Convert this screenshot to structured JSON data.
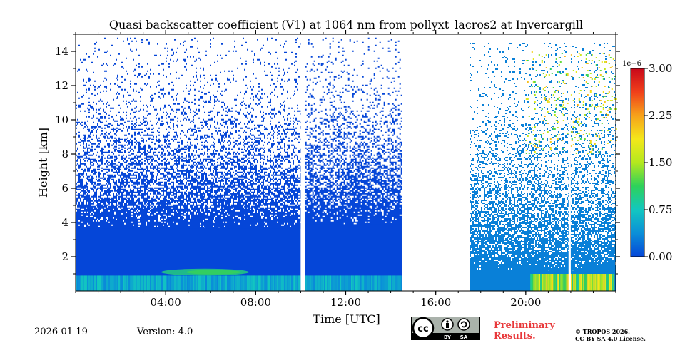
{
  "chart_data": {
    "type": "heatmap",
    "title": "Quasi backscatter coefficient (V1) at 1064 nm from pollyxt_lacros2 at Invercargill",
    "xlabel": "Time [UTC]",
    "ylabel": "Height [km]",
    "xlim_hours": [
      0,
      24
    ],
    "ylim_km": [
      0,
      15
    ],
    "x_ticks": [
      {
        "value": 4,
        "label": "04:00"
      },
      {
        "value": 8,
        "label": "08:00"
      },
      {
        "value": 12,
        "label": "12:00"
      },
      {
        "value": 16,
        "label": "16:00"
      },
      {
        "value": 20,
        "label": "20:00"
      }
    ],
    "y_ticks": [
      {
        "value": 2,
        "label": "2"
      },
      {
        "value": 4,
        "label": "4"
      },
      {
        "value": 6,
        "label": "6"
      },
      {
        "value": 8,
        "label": "8"
      },
      {
        "value": 10,
        "label": "10"
      },
      {
        "value": 12,
        "label": "12"
      },
      {
        "value": 14,
        "label": "14"
      }
    ],
    "colorbar": {
      "range": [
        0,
        3.0
      ],
      "scale_label": "1e−6",
      "ticks": [
        {
          "value": 0.0,
          "label": "0.00"
        },
        {
          "value": 0.75,
          "label": "0.75"
        },
        {
          "value": 1.5,
          "label": "1.50"
        },
        {
          "value": 2.25,
          "label": "2.25"
        },
        {
          "value": 3.0,
          "label": "3.00"
        }
      ],
      "colormap": [
        "#0546d8",
        "#0a8fd8",
        "#12c7c0",
        "#2ed15a",
        "#b4e81e",
        "#f4e71a",
        "#f7a21a",
        "#f0401a",
        "#c8081a"
      ]
    },
    "data_gaps_hours": [
      [
        10.0,
        10.2
      ],
      [
        14.5,
        17.5
      ],
      [
        21.9,
        22.0
      ]
    ],
    "segments": [
      {
        "start": 0.0,
        "end": 10.0,
        "dense_top_km": 3.7,
        "sparse_top_km": 14.8,
        "value_level": 0.0
      },
      {
        "start": 10.2,
        "end": 14.5,
        "dense_top_km": 3.9,
        "sparse_top_km": 14.8,
        "value_level": 0.0
      },
      {
        "start": 17.5,
        "end": 24.0,
        "dense_top_km": 1.2,
        "sparse_top_km": 14.5,
        "value_level": 0.3
      }
    ],
    "features": [
      {
        "name": "near-surface layer",
        "start": 0.0,
        "end": 14.5,
        "bottom_km": 0.0,
        "top_km": 0.9,
        "value_level": 0.6
      },
      {
        "name": "aerosol plume",
        "start": 3.8,
        "end": 7.7,
        "bottom_km": 0.9,
        "top_km": 1.3,
        "value_level": 1.0
      },
      {
        "name": "evening surface layer",
        "start": 20.2,
        "end": 23.9,
        "bottom_km": 0.0,
        "top_km": 1.0,
        "value_level": 1.6
      },
      {
        "name": "upper scattered signal",
        "start": 20.0,
        "end": 24.0,
        "bottom_km": 8.0,
        "top_km": 14.0,
        "value_level": 1.8
      }
    ]
  },
  "footer": {
    "date": "2026-01-19",
    "version": "Version: 4.0",
    "preliminary_line1": "Preliminary",
    "preliminary_line2": "Results.",
    "copyright_line1": "© TROPOS 2026.",
    "copyright_line2": "CC BY SA 4.0 License.",
    "badge_by": "BY",
    "badge_sa": "SA"
  }
}
